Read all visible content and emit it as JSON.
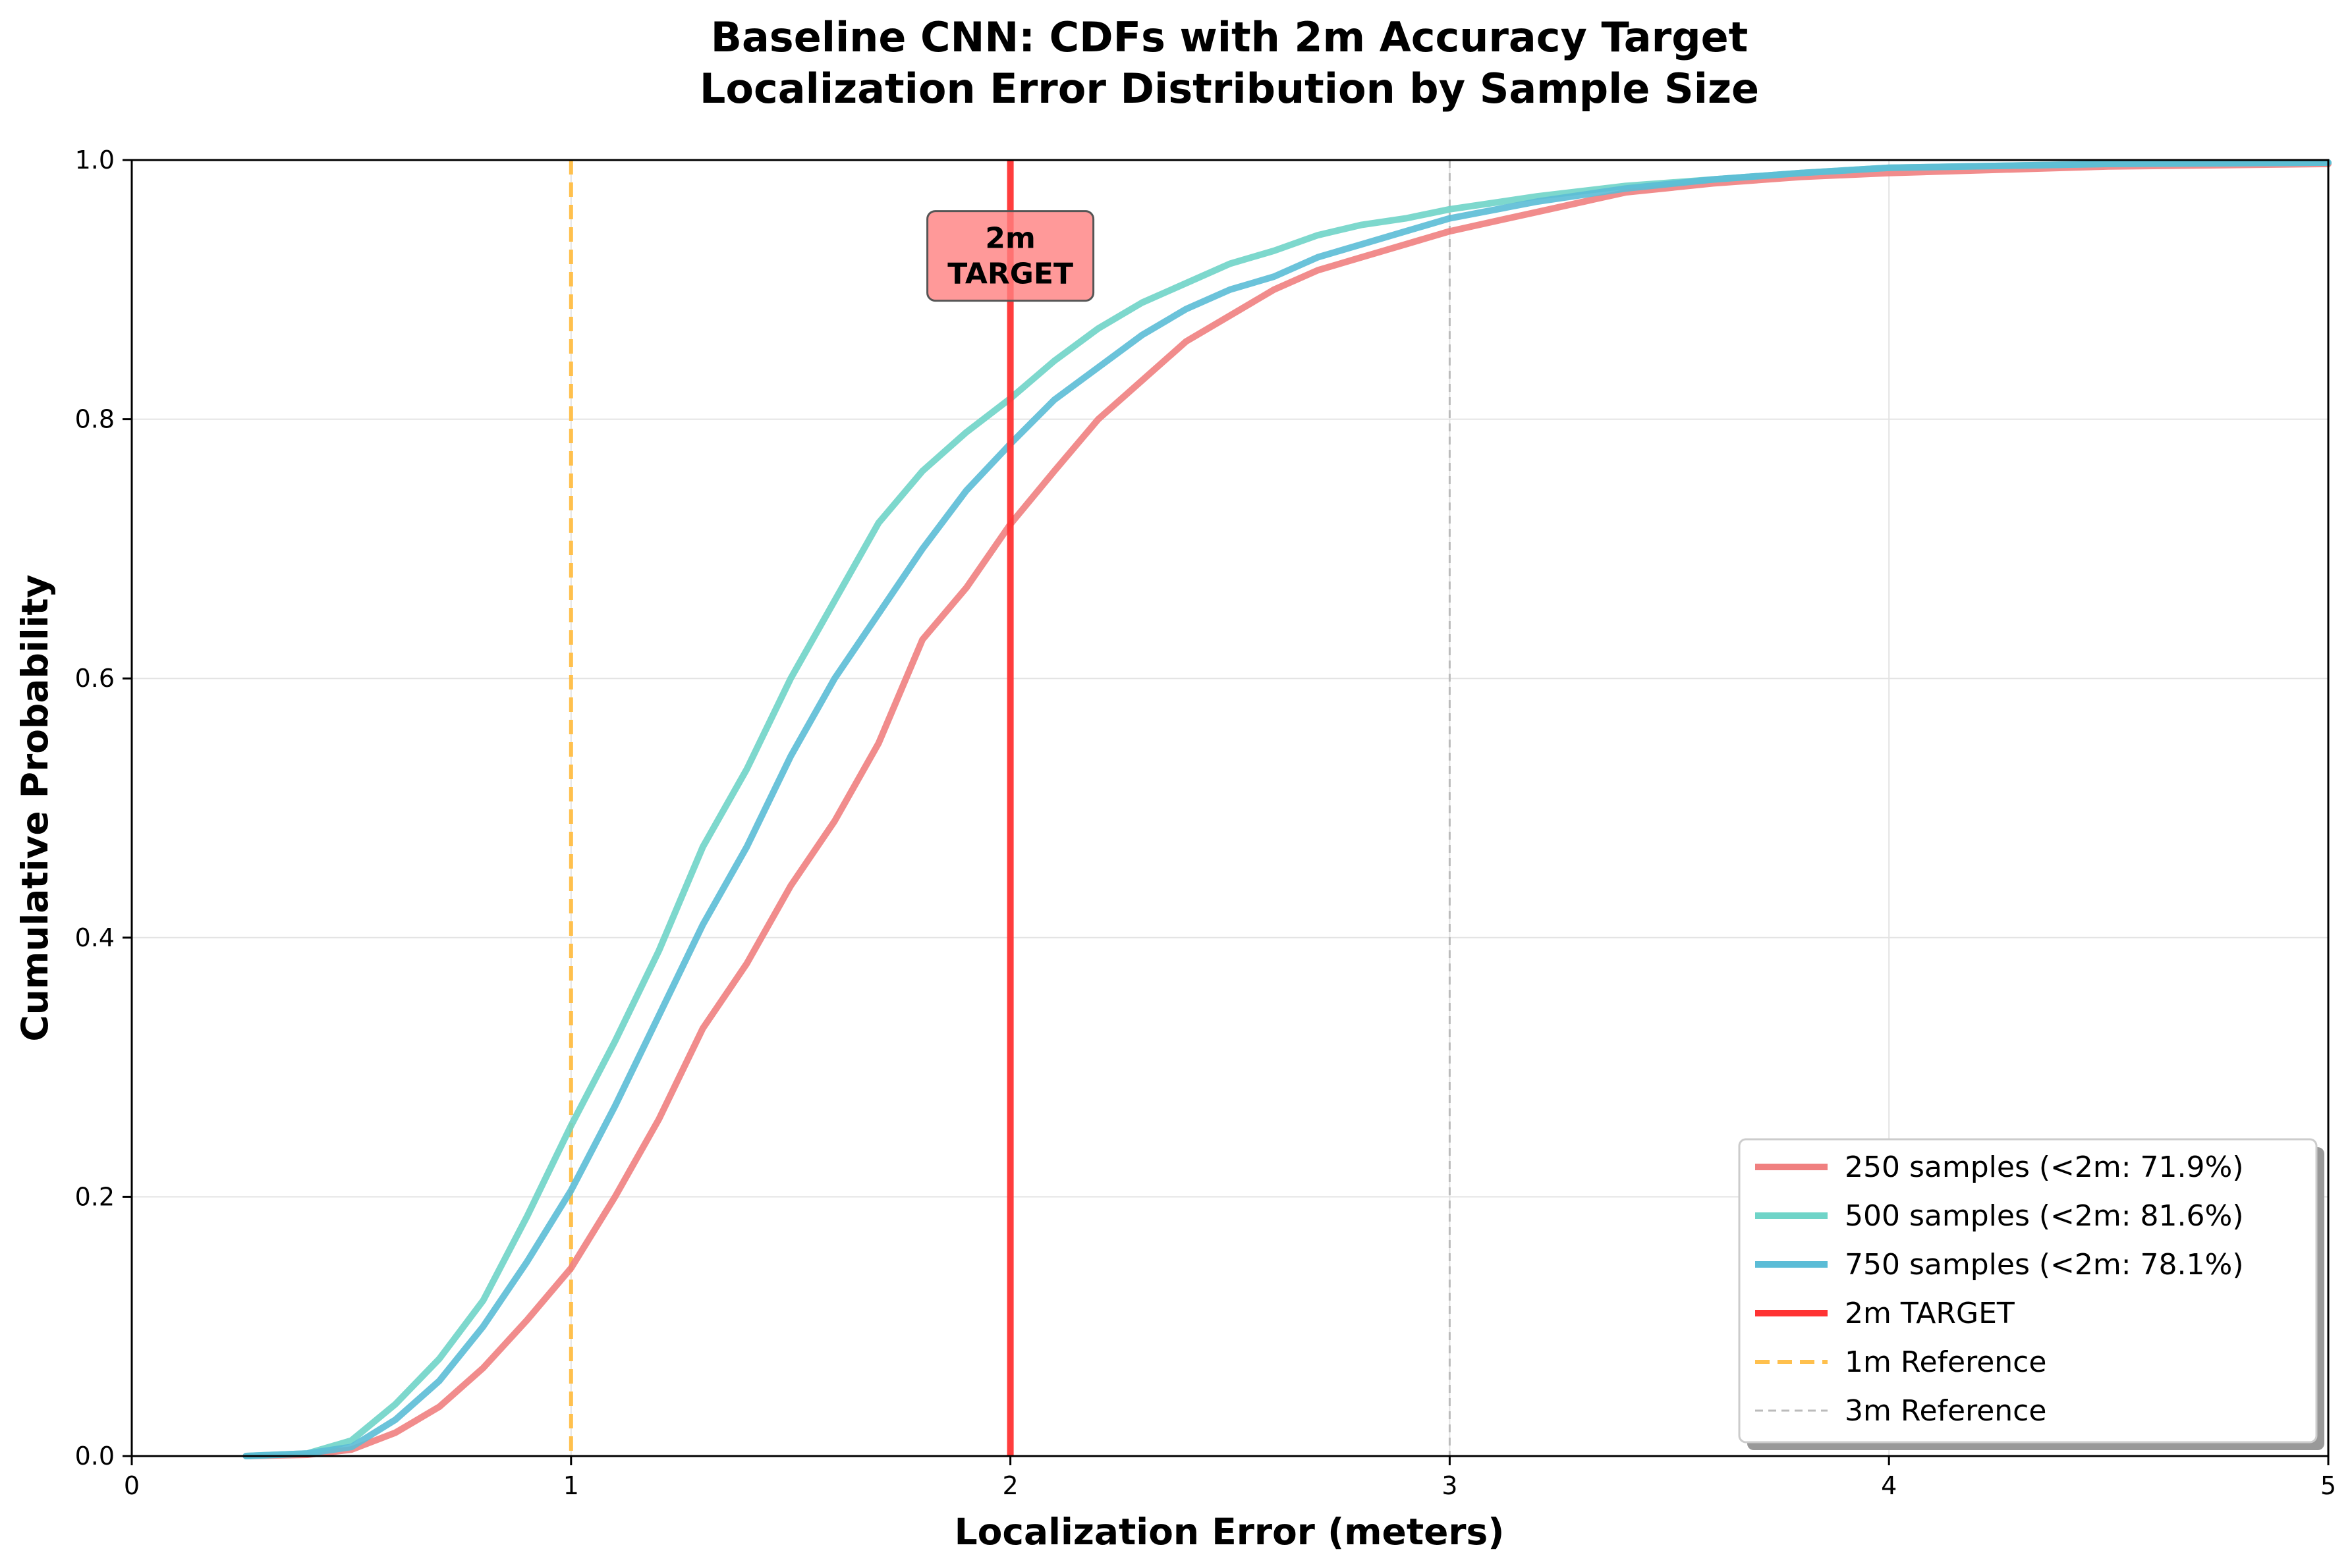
{
  "chart_data": {
    "type": "line",
    "title_line1": "Baseline CNN: CDFs with 2m Accuracy Target",
    "title_line2": "Localization Error Distribution by Sample Size",
    "xlabel": "Localization Error (meters)",
    "ylabel": "Cumulative Probability",
    "xlim": [
      0,
      5
    ],
    "ylim": [
      0,
      1.0
    ],
    "x_ticks": [
      "0",
      "1",
      "2",
      "3",
      "4",
      "5"
    ],
    "y_ticks": [
      "0.0",
      "0.2",
      "0.4",
      "0.6",
      "0.8",
      "1.0"
    ],
    "grid": true,
    "legend_position": "lower right",
    "series": [
      {
        "name": "250 samples (<2m: 71.9%)",
        "color": "#f08080",
        "x": [
          0.26,
          0.4,
          0.5,
          0.6,
          0.7,
          0.8,
          0.9,
          1.0,
          1.1,
          1.2,
          1.3,
          1.4,
          1.5,
          1.6,
          1.7,
          1.8,
          1.9,
          2.0,
          2.1,
          2.2,
          2.3,
          2.4,
          2.5,
          2.6,
          2.7,
          2.8,
          2.9,
          3.0,
          3.2,
          3.4,
          3.6,
          3.8,
          4.0,
          4.5,
          5.0
        ],
        "y": [
          0.0,
          0.001,
          0.005,
          0.018,
          0.038,
          0.068,
          0.105,
          0.145,
          0.2,
          0.26,
          0.33,
          0.38,
          0.44,
          0.49,
          0.55,
          0.63,
          0.67,
          0.719,
          0.76,
          0.8,
          0.83,
          0.86,
          0.88,
          0.9,
          0.915,
          0.925,
          0.935,
          0.945,
          0.96,
          0.975,
          0.982,
          0.987,
          0.99,
          0.995,
          0.997
        ]
      },
      {
        "name": "500 samples (<2m: 81.6%)",
        "color": "#6fd4c8",
        "x": [
          0.26,
          0.4,
          0.5,
          0.6,
          0.7,
          0.8,
          0.9,
          1.0,
          1.1,
          1.2,
          1.3,
          1.4,
          1.5,
          1.6,
          1.7,
          1.8,
          1.9,
          2.0,
          2.1,
          2.2,
          2.3,
          2.4,
          2.5,
          2.6,
          2.7,
          2.8,
          2.9,
          3.0,
          3.2,
          3.4,
          3.6,
          3.8,
          4.0,
          4.5,
          5.0
        ],
        "y": [
          0.0,
          0.002,
          0.012,
          0.04,
          0.075,
          0.12,
          0.185,
          0.255,
          0.32,
          0.39,
          0.47,
          0.53,
          0.6,
          0.66,
          0.72,
          0.76,
          0.79,
          0.816,
          0.845,
          0.87,
          0.89,
          0.905,
          0.92,
          0.93,
          0.942,
          0.95,
          0.955,
          0.962,
          0.972,
          0.98,
          0.985,
          0.99,
          0.994,
          0.997,
          0.998
        ]
      },
      {
        "name": "750 samples (<2m: 78.1%)",
        "color": "#5bbcd6",
        "x": [
          0.26,
          0.4,
          0.5,
          0.6,
          0.7,
          0.8,
          0.9,
          1.0,
          1.1,
          1.2,
          1.3,
          1.4,
          1.5,
          1.6,
          1.7,
          1.8,
          1.9,
          2.0,
          2.1,
          2.2,
          2.3,
          2.4,
          2.5,
          2.6,
          2.7,
          2.8,
          2.9,
          3.0,
          3.2,
          3.4,
          3.6,
          3.8,
          4.0,
          4.5,
          5.0
        ],
        "y": [
          0.0,
          0.002,
          0.007,
          0.028,
          0.058,
          0.1,
          0.15,
          0.205,
          0.27,
          0.34,
          0.41,
          0.47,
          0.54,
          0.6,
          0.65,
          0.7,
          0.745,
          0.781,
          0.815,
          0.84,
          0.865,
          0.885,
          0.9,
          0.91,
          0.925,
          0.935,
          0.945,
          0.955,
          0.968,
          0.978,
          0.985,
          0.99,
          0.994,
          0.997,
          0.998
        ]
      }
    ],
    "reference_lines": [
      {
        "name": "2m TARGET",
        "x": 2,
        "color": "#ff3333",
        "style": "solid"
      },
      {
        "name": "1m Reference",
        "x": 1,
        "color": "#ffc04d",
        "style": "dashed"
      },
      {
        "name": "3m Reference",
        "x": 3,
        "color": "#bbbbbb",
        "style": "dashed"
      }
    ],
    "annotation": {
      "line1": "2m",
      "line2": "TARGET",
      "x": 2,
      "y": 0.925,
      "color": "#ff8080"
    }
  }
}
